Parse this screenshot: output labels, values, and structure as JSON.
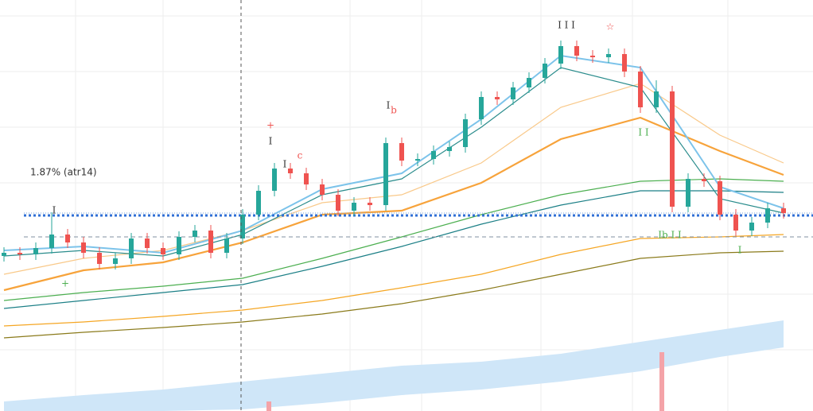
{
  "chart_data": {
    "type": "candlestick",
    "annotation": "1.87% (atr14)",
    "xlim": [
      -0.25,
      49.75
    ],
    "ylim": [
      0,
      517
    ],
    "up_color": "#26a69a",
    "down_color": "#ef5350",
    "open": [
      195,
      199,
      197,
      205,
      222,
      212,
      199,
      185,
      192,
      217,
      205,
      197,
      219,
      227,
      199,
      217,
      247,
      277,
      305,
      299,
      285,
      272,
      252,
      262,
      259,
      337,
      315,
      317,
      327,
      332,
      367,
      395,
      392,
      407,
      419,
      437,
      459,
      447,
      445,
      449,
      427,
      382,
      402,
      257,
      292,
      289,
      247,
      227,
      237,
      255
    ],
    "high": [
      206,
      206,
      212,
      250,
      229,
      219,
      206,
      199,
      224,
      224,
      212,
      226,
      234,
      234,
      224,
      254,
      284,
      312,
      312,
      306,
      292,
      279,
      269,
      269,
      344,
      344,
      324,
      334,
      339,
      374,
      402,
      402,
      414,
      426,
      444,
      466,
      466,
      454,
      456,
      456,
      434,
      416,
      409,
      299,
      299,
      296,
      254,
      244,
      262,
      262
    ],
    "low": [
      188,
      190,
      190,
      198,
      205,
      192,
      178,
      178,
      185,
      198,
      190,
      190,
      212,
      192,
      192,
      210,
      240,
      270,
      292,
      278,
      265,
      245,
      245,
      252,
      252,
      308,
      308,
      310,
      320,
      325,
      360,
      385,
      385,
      400,
      412,
      430,
      440,
      438,
      438,
      420,
      375,
      375,
      250,
      250,
      282,
      240,
      220,
      220,
      230,
      242
    ],
    "close": [
      199,
      197,
      205,
      222,
      212,
      199,
      185,
      192,
      217,
      205,
      197,
      219,
      227,
      199,
      217,
      247,
      277,
      305,
      299,
      285,
      272,
      252,
      262,
      259,
      337,
      315,
      317,
      327,
      332,
      367,
      395,
      392,
      407,
      419,
      437,
      459,
      447,
      445,
      449,
      427,
      382,
      402,
      257,
      292,
      289,
      247,
      227,
      237,
      255,
      249
    ],
    "overlay_x": [
      0,
      5,
      10,
      15,
      20,
      25,
      30,
      35,
      40,
      45,
      49
    ],
    "overlays": [
      {
        "color": "#8a7a1a",
        "values": [
          92,
          99,
          105,
          112,
          122,
          135,
          152,
          172,
          192,
          199,
          201
        ]
      },
      {
        "color": "#f5a623",
        "values": [
          107,
          112,
          119,
          127,
          139,
          155,
          172,
          197,
          217,
          219,
          222
        ]
      },
      {
        "color": "#4caf50",
        "values": [
          139,
          149,
          157,
          167,
          192,
          219,
          247,
          272,
          289,
          292,
          289
        ]
      },
      {
        "color": "#1b7f86",
        "values": [
          129,
          139,
          149,
          159,
          182,
          207,
          235,
          259,
          277,
          277,
          275
        ]
      },
      {
        "color": "#f9c98a",
        "values": [
          172,
          192,
          202,
          227,
          262,
          272,
          312,
          382,
          412,
          347,
          312
        ]
      },
      {
        "color": "#f7a33b",
        "values": [
          152,
          177,
          187,
          212,
          247,
          252,
          287,
          342,
          369,
          327,
          297
        ]
      },
      {
        "color": "#2a8c8c",
        "values": [
          195,
          202,
          195,
          222,
          272,
          292,
          357,
          432,
          407,
          267,
          249
        ]
      },
      {
        "color": "#7cc3ea",
        "values": [
          202,
          207,
          199,
          227,
          279,
          299,
          367,
          447,
          432,
          282,
          255
        ]
      }
    ],
    "band": {
      "color": "#cfe6f8",
      "upper": [
        12,
        20,
        27,
        37,
        47,
        57,
        62,
        72,
        87,
        102,
        114
      ],
      "lower": [
        -5,
        -3,
        0,
        2,
        10,
        20,
        27,
        37,
        50,
        68,
        80
      ]
    },
    "levels": [
      {
        "value": 249,
        "color": "#7aa6d8",
        "style": "dotted-thin"
      },
      {
        "value": 246,
        "color": "#2f6fd6",
        "style": "dotted-thick"
      },
      {
        "value": 219,
        "color": "#8090a0",
        "style": "dashed"
      }
    ],
    "volume": {
      "x": [
        16.65,
        41.35
      ],
      "values": [
        12,
        74
      ],
      "color": "#f4a3a8"
    },
    "markers": [
      {
        "text": "I",
        "x": 3.15,
        "y": 252,
        "color": "#333333"
      },
      {
        "text": "+",
        "x": 3.85,
        "y": 160,
        "color": "#4caf50"
      },
      {
        "text": "+",
        "x": 16.75,
        "y": 359,
        "color": "#ef5350"
      },
      {
        "text": "I",
        "x": 16.75,
        "y": 339,
        "color": "#333333"
      },
      {
        "text": "I",
        "x": 17.65,
        "y": 310,
        "color": "#333333"
      },
      {
        "text": "c",
        "x": 18.6,
        "y": 321,
        "color": "#ef5350"
      },
      {
        "text": "I",
        "x": 24.15,
        "y": 384,
        "color": "#333333"
      },
      {
        "text": "b",
        "x": 24.5,
        "y": 378,
        "color": "#ef5350"
      },
      {
        "text": "I I I",
        "x": 35.35,
        "y": 485,
        "color": "#333333"
      },
      {
        "text": "☆",
        "x": 38.1,
        "y": 483,
        "color": "#ef5350"
      },
      {
        "text": "I I",
        "x": 40.2,
        "y": 350,
        "color": "#4caf50"
      },
      {
        "text": "Ib I I",
        "x": 41.85,
        "y": 221,
        "color": "#4caf50"
      },
      {
        "text": "I",
        "x": 46.25,
        "y": 202,
        "color": "#4caf50"
      }
    ]
  }
}
